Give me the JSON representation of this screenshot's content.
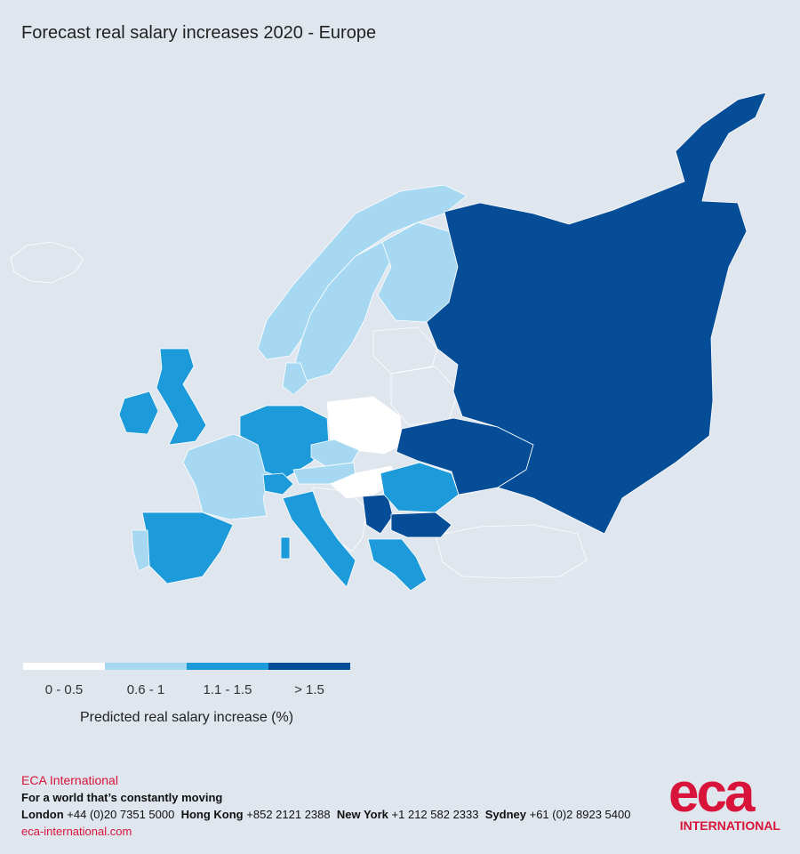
{
  "title": "Forecast real salary increases 2020 - Europe",
  "legend": {
    "classes": [
      {
        "label": "0 - 0.5",
        "color": "#ffffff"
      },
      {
        "label": "0.6 - 1",
        "color": "#a6d8f2"
      },
      {
        "label": "1.1 - 1.5",
        "color": "#1d9ad9"
      },
      {
        "label": "> 1.5",
        "color": "#064d98"
      }
    ],
    "caption": "Predicted real salary increase (%)"
  },
  "map": {
    "no_data_color": "#dfe6ee",
    "regions": [
      {
        "name": "Russia",
        "class": 3
      },
      {
        "name": "Ukraine",
        "class": 3
      },
      {
        "name": "Bulgaria",
        "class": 3
      },
      {
        "name": "Serbia",
        "class": 3
      },
      {
        "name": "Romania",
        "class": 2
      },
      {
        "name": "Germany",
        "class": 2
      },
      {
        "name": "Italy",
        "class": 2
      },
      {
        "name": "Spain",
        "class": 2
      },
      {
        "name": "United Kingdom",
        "class": 2
      },
      {
        "name": "Greece",
        "class": 2
      },
      {
        "name": "Switzerland",
        "class": 2
      },
      {
        "name": "Ireland",
        "class": 2
      },
      {
        "name": "France",
        "class": 1
      },
      {
        "name": "Portugal",
        "class": 1
      },
      {
        "name": "Norway",
        "class": 1
      },
      {
        "name": "Sweden",
        "class": 1
      },
      {
        "name": "Finland",
        "class": 1
      },
      {
        "name": "Denmark",
        "class": 1
      },
      {
        "name": "Austria",
        "class": 1
      },
      {
        "name": "Czech Republic",
        "class": 1
      },
      {
        "name": "Poland",
        "class": 0
      },
      {
        "name": "Hungary",
        "class": 0
      }
    ]
  },
  "footer": {
    "company": "ECA International",
    "tagline": "For a world that’s constantly moving",
    "contacts": [
      {
        "city": "London",
        "phone": "+44 (0)20 7351 5000"
      },
      {
        "city": "Hong Kong",
        "phone": "+852 2121 2388"
      },
      {
        "city": "New York",
        "phone": "+1 212 582 2333"
      },
      {
        "city": "Sydney",
        "phone": "+61 (0)2 8923 5400"
      }
    ],
    "website": "eca-international.com"
  },
  "logo": {
    "mark": "eca",
    "sub": "INTERNATIONAL"
  }
}
